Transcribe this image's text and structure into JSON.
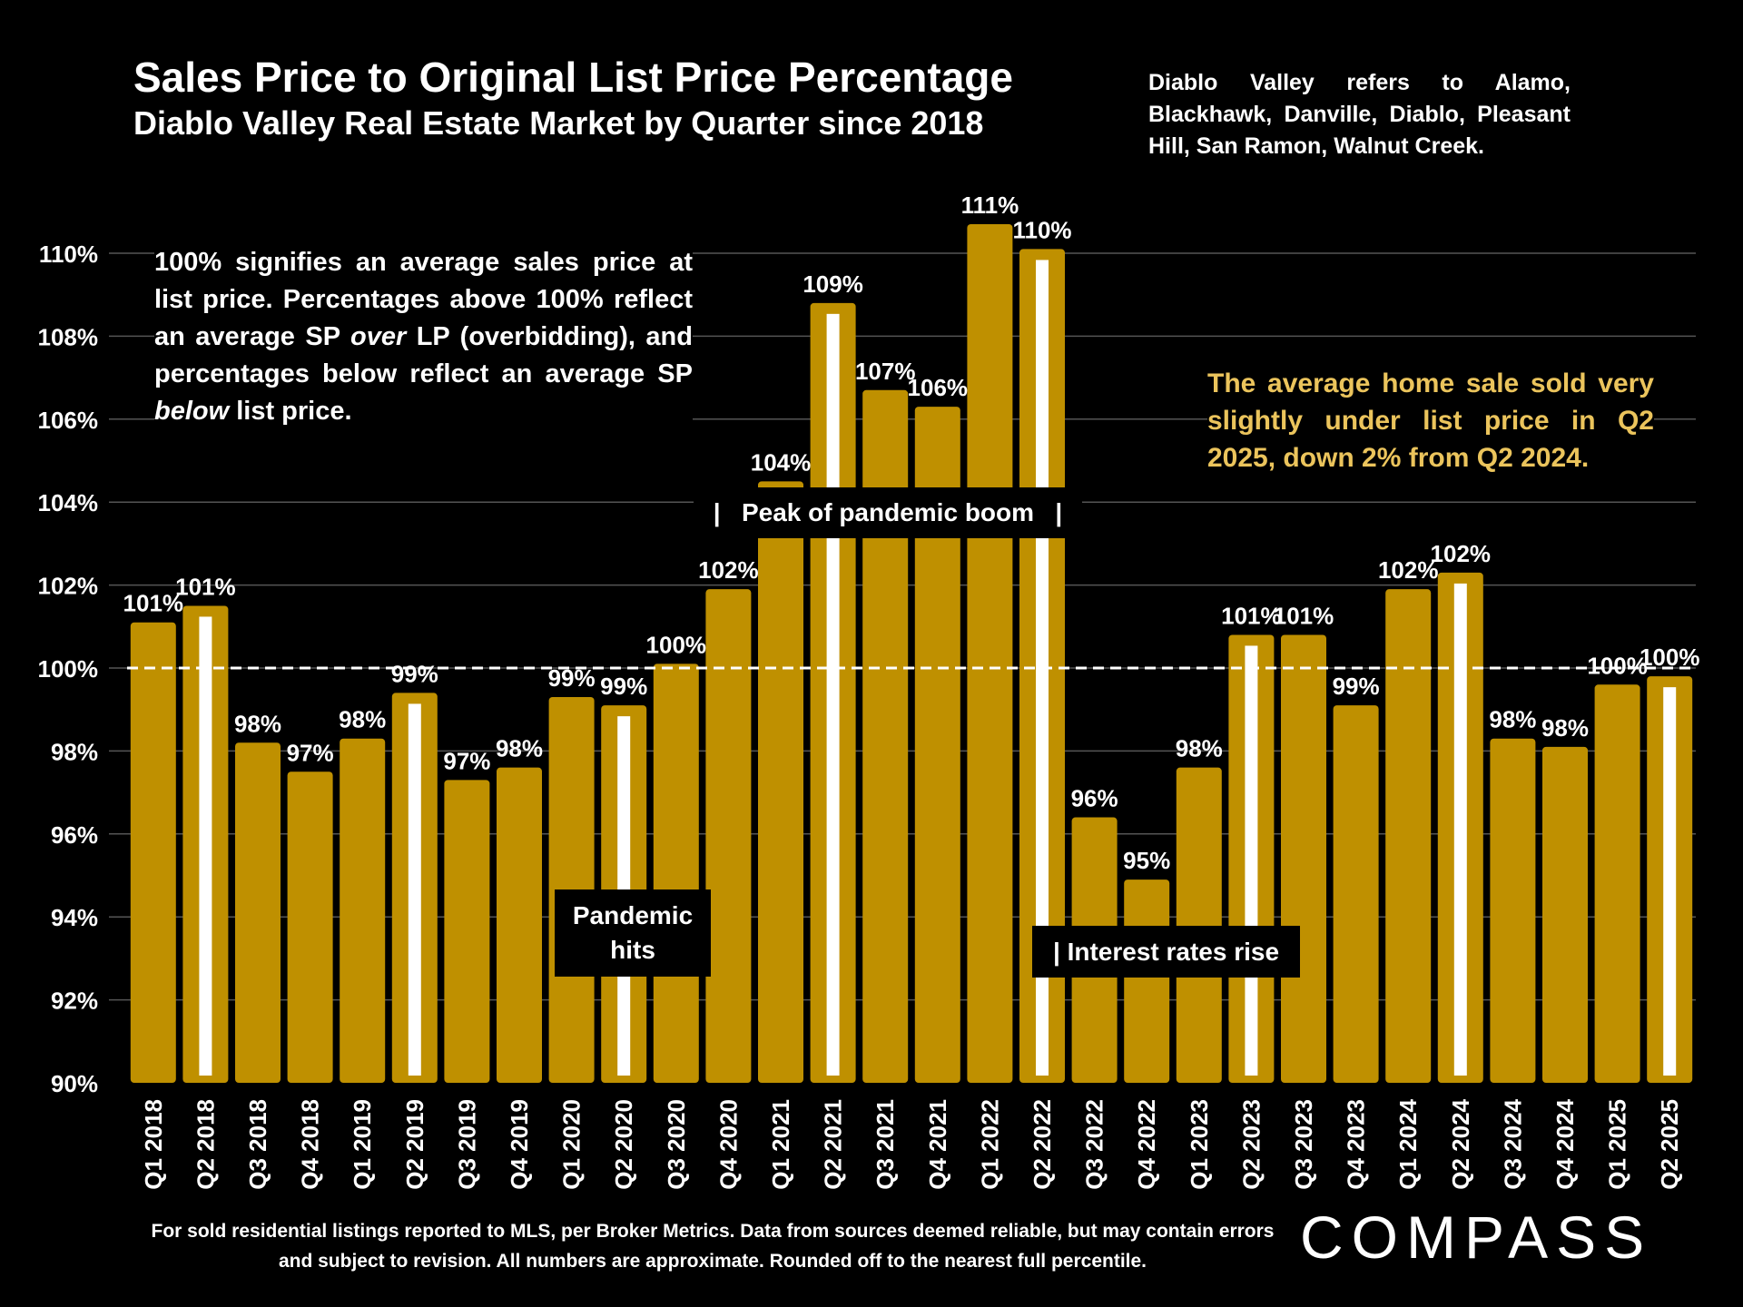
{
  "page": {
    "title": "Sales Price to Original List Price Percentage",
    "subtitle": "Diablo Valley Real Estate Market by Quarter since 2018",
    "region_note": "Diablo Valley refers to Alamo, Blackhawk, Danville, Diablo, Pleasant Hill, San Ramon, Walnut Creek.",
    "explain_note": {
      "part1": "100% signifies an average sales price at list price. Percentages above 100% reflect an average SP ",
      "emph1": "over",
      "part2": " LP (overbidding), and percentages below reflect an average SP ",
      "emph2": "below",
      "part3": " list price."
    },
    "highlight_note": "The average home sale sold very slightly under list price in Q2 2025, down 2% from Q2 2024.",
    "annotations": {
      "pandemic_hits": "Pandemic hits",
      "peak_boom": "|   Peak of pandemic boom   |",
      "rates_rise": "| Interest rates rise"
    },
    "footnote": "For sold residential listings reported to MLS, per Broker Metrics. Data from sources deemed reliable, but may contain errors and subject to revision. All numbers are approximate. Rounded off to the nearest full percentile.",
    "logo": "COMPASS"
  },
  "colors": {
    "bar": "#bf9000",
    "highlight_stripe": "#ffffff",
    "background": "#000000",
    "gridline": "#555555",
    "reference_line": "#ffffff",
    "highlight_text": "#ebc45c"
  },
  "chart_data": {
    "type": "bar",
    "title": "Sales Price to Original List Price Percentage",
    "subtitle": "Diablo Valley Real Estate Market by Quarter since 2018",
    "categories": [
      "Q1 2018",
      "Q2 2018",
      "Q3 2018",
      "Q4 2018",
      "Q1 2019",
      "Q2 2019",
      "Q3 2019",
      "Q4 2019",
      "Q1 2020",
      "Q2 2020",
      "Q3 2020",
      "Q4 2020",
      "Q1 2021",
      "Q2 2021",
      "Q3 2021",
      "Q4 2021",
      "Q1 2022",
      "Q2 2022",
      "Q3 2022",
      "Q4 2022",
      "Q1 2023",
      "Q2 2023",
      "Q3 2023",
      "Q4 2023",
      "Q1 2024",
      "Q2 2024",
      "Q3 2024",
      "Q4 2024",
      "Q1 2025",
      "Q2 2025"
    ],
    "values": [
      101.1,
      101.5,
      98.2,
      97.5,
      98.3,
      99.4,
      97.3,
      97.6,
      99.3,
      99.1,
      100.1,
      101.9,
      104.5,
      108.8,
      106.7,
      106.3,
      110.7,
      110.1,
      96.4,
      94.9,
      97.6,
      100.8,
      100.8,
      99.1,
      101.9,
      102.3,
      98.3,
      98.1,
      99.6,
      99.8
    ],
    "data_labels": [
      "101%",
      "101%",
      "98%",
      "97%",
      "98%",
      "99%",
      "97%",
      "98%",
      "99%",
      "99%",
      "100%",
      "102%",
      "104%",
      "109%",
      "107%",
      "106%",
      "111%",
      "110%",
      "96%",
      "95%",
      "98%",
      "101%",
      "101%",
      "99%",
      "102%",
      "102%",
      "98%",
      "98%",
      "100%",
      "100%"
    ],
    "highlighted_quarter": "Q2",
    "ylim": [
      90,
      111
    ],
    "y_ticks": [
      90,
      92,
      94,
      96,
      98,
      100,
      102,
      104,
      106,
      108,
      110
    ],
    "y_tick_labels": [
      "90%",
      "92%",
      "94%",
      "96%",
      "98%",
      "100%",
      "102%",
      "104%",
      "106%",
      "108%",
      "110%"
    ],
    "reference_value": 100,
    "grid": true,
    "xlabel": "",
    "ylabel": ""
  }
}
